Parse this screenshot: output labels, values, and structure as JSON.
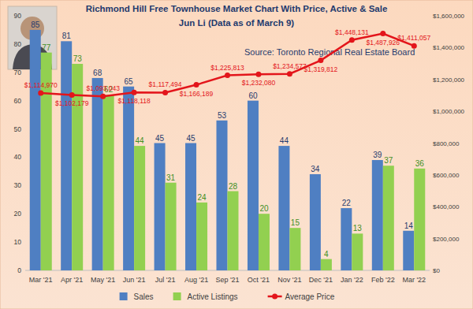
{
  "chart_data": {
    "type": "bar",
    "title": "Richmond Hill Free Townhouse Market Chart With Price, Active & Sale",
    "subtitle": "Jun Li (Data as of March 9)",
    "annotations": [
      "Source: Toronto Regional Real Estate Board"
    ],
    "categories": [
      "Mar '21",
      "Apr '21",
      "May '21",
      "Jun '21",
      "Jul '21",
      "Aug '21",
      "Sep '21",
      "Oct '21",
      "Nov '21",
      "Dec '21",
      "Jan '22",
      "Feb '22",
      "Mar '22"
    ],
    "series": [
      {
        "name": "Sales",
        "type": "bar",
        "color": "#4f7fc2",
        "values": [
          85,
          81,
          68,
          65,
          45,
          45,
          53,
          60,
          44,
          34,
          22,
          39,
          14
        ]
      },
      {
        "name": "Active Listings",
        "type": "bar",
        "color": "#92d050",
        "values": [
          77,
          73,
          62,
          44,
          31,
          24,
          28,
          20,
          15,
          4,
          13,
          37,
          36
        ]
      },
      {
        "name": "Average Price",
        "type": "line",
        "axis": "y2",
        "color": "#e3151b",
        "marker": "circle",
        "line_style": "solid",
        "values": [
          1114970,
          1102179,
          1093043,
          1118118,
          1117494,
          1166189,
          1225813,
          1232080,
          1234577,
          1319812,
          1448131,
          1487926,
          1411057
        ],
        "value_labels": [
          "$1,114,970",
          "$1,102,179",
          "$1,093,043",
          "$1,118,118",
          "$1,117,494",
          "$1,166,189",
          "$1,225,813",
          "$1,232,080",
          "$1,234,577",
          "$1,319,812",
          "$1,448,131",
          "$1,487,926",
          "$1,411,057"
        ]
      }
    ],
    "ylim": [
      0,
      90
    ],
    "yticks": [
      0,
      10,
      20,
      30,
      40,
      50,
      60,
      70,
      80,
      90
    ],
    "y2lim": [
      0,
      1600000
    ],
    "y2ticks": [
      {
        "value": 0,
        "label": "$0"
      },
      {
        "value": 200000,
        "label": "$200,000"
      },
      {
        "value": 400000,
        "label": "$400,000"
      },
      {
        "value": 600000,
        "label": "$600,000"
      },
      {
        "value": 800000,
        "label": "$800,000"
      },
      {
        "value": 1000000,
        "label": "$1,000,000"
      },
      {
        "value": 1200000,
        "label": "$1,200,000"
      },
      {
        "value": 1400000,
        "label": "$1,400,000"
      },
      {
        "value": 1600000,
        "label": "$1,600,000"
      }
    ],
    "grid": false,
    "legend": "bottom",
    "data_labels": true
  }
}
